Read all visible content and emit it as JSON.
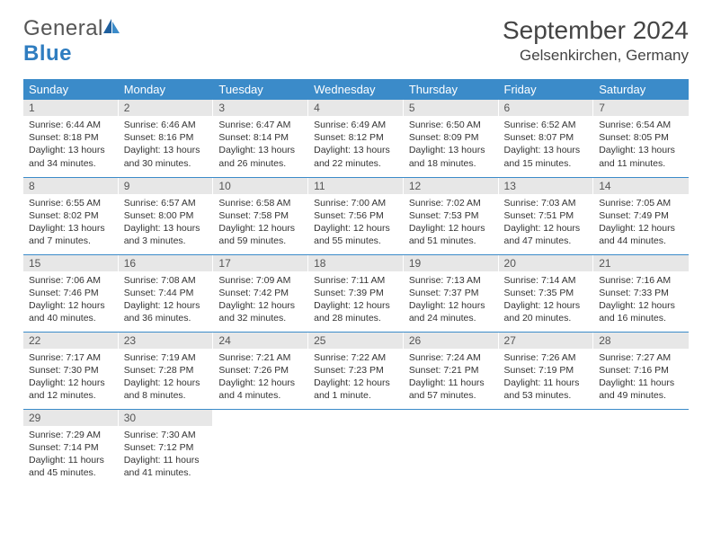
{
  "brand": {
    "name_gray": "General",
    "name_blue": "Blue"
  },
  "title": "September 2024",
  "location": "Gelsenkirchen, Germany",
  "colors": {
    "header_bg": "#3b8bc9",
    "header_text": "#ffffff",
    "daynum_bg": "#e7e7e7",
    "rule": "#3b8bc9",
    "text": "#333333",
    "brand_blue": "#2f7dc0"
  },
  "weekdays": [
    "Sunday",
    "Monday",
    "Tuesday",
    "Wednesday",
    "Thursday",
    "Friday",
    "Saturday"
  ],
  "days": [
    {
      "n": 1,
      "sunrise": "6:44 AM",
      "sunset": "8:18 PM",
      "daylight": "13 hours and 34 minutes."
    },
    {
      "n": 2,
      "sunrise": "6:46 AM",
      "sunset": "8:16 PM",
      "daylight": "13 hours and 30 minutes."
    },
    {
      "n": 3,
      "sunrise": "6:47 AM",
      "sunset": "8:14 PM",
      "daylight": "13 hours and 26 minutes."
    },
    {
      "n": 4,
      "sunrise": "6:49 AM",
      "sunset": "8:12 PM",
      "daylight": "13 hours and 22 minutes."
    },
    {
      "n": 5,
      "sunrise": "6:50 AM",
      "sunset": "8:09 PM",
      "daylight": "13 hours and 18 minutes."
    },
    {
      "n": 6,
      "sunrise": "6:52 AM",
      "sunset": "8:07 PM",
      "daylight": "13 hours and 15 minutes."
    },
    {
      "n": 7,
      "sunrise": "6:54 AM",
      "sunset": "8:05 PM",
      "daylight": "13 hours and 11 minutes."
    },
    {
      "n": 8,
      "sunrise": "6:55 AM",
      "sunset": "8:02 PM",
      "daylight": "13 hours and 7 minutes."
    },
    {
      "n": 9,
      "sunrise": "6:57 AM",
      "sunset": "8:00 PM",
      "daylight": "13 hours and 3 minutes."
    },
    {
      "n": 10,
      "sunrise": "6:58 AM",
      "sunset": "7:58 PM",
      "daylight": "12 hours and 59 minutes."
    },
    {
      "n": 11,
      "sunrise": "7:00 AM",
      "sunset": "7:56 PM",
      "daylight": "12 hours and 55 minutes."
    },
    {
      "n": 12,
      "sunrise": "7:02 AM",
      "sunset": "7:53 PM",
      "daylight": "12 hours and 51 minutes."
    },
    {
      "n": 13,
      "sunrise": "7:03 AM",
      "sunset": "7:51 PM",
      "daylight": "12 hours and 47 minutes."
    },
    {
      "n": 14,
      "sunrise": "7:05 AM",
      "sunset": "7:49 PM",
      "daylight": "12 hours and 44 minutes."
    },
    {
      "n": 15,
      "sunrise": "7:06 AM",
      "sunset": "7:46 PM",
      "daylight": "12 hours and 40 minutes."
    },
    {
      "n": 16,
      "sunrise": "7:08 AM",
      "sunset": "7:44 PM",
      "daylight": "12 hours and 36 minutes."
    },
    {
      "n": 17,
      "sunrise": "7:09 AM",
      "sunset": "7:42 PM",
      "daylight": "12 hours and 32 minutes."
    },
    {
      "n": 18,
      "sunrise": "7:11 AM",
      "sunset": "7:39 PM",
      "daylight": "12 hours and 28 minutes."
    },
    {
      "n": 19,
      "sunrise": "7:13 AM",
      "sunset": "7:37 PM",
      "daylight": "12 hours and 24 minutes."
    },
    {
      "n": 20,
      "sunrise": "7:14 AM",
      "sunset": "7:35 PM",
      "daylight": "12 hours and 20 minutes."
    },
    {
      "n": 21,
      "sunrise": "7:16 AM",
      "sunset": "7:33 PM",
      "daylight": "12 hours and 16 minutes."
    },
    {
      "n": 22,
      "sunrise": "7:17 AM",
      "sunset": "7:30 PM",
      "daylight": "12 hours and 12 minutes."
    },
    {
      "n": 23,
      "sunrise": "7:19 AM",
      "sunset": "7:28 PM",
      "daylight": "12 hours and 8 minutes."
    },
    {
      "n": 24,
      "sunrise": "7:21 AM",
      "sunset": "7:26 PM",
      "daylight": "12 hours and 4 minutes."
    },
    {
      "n": 25,
      "sunrise": "7:22 AM",
      "sunset": "7:23 PM",
      "daylight": "12 hours and 1 minute."
    },
    {
      "n": 26,
      "sunrise": "7:24 AM",
      "sunset": "7:21 PM",
      "daylight": "11 hours and 57 minutes."
    },
    {
      "n": 27,
      "sunrise": "7:26 AM",
      "sunset": "7:19 PM",
      "daylight": "11 hours and 53 minutes."
    },
    {
      "n": 28,
      "sunrise": "7:27 AM",
      "sunset": "7:16 PM",
      "daylight": "11 hours and 49 minutes."
    },
    {
      "n": 29,
      "sunrise": "7:29 AM",
      "sunset": "7:14 PM",
      "daylight": "11 hours and 45 minutes."
    },
    {
      "n": 30,
      "sunrise": "7:30 AM",
      "sunset": "7:12 PM",
      "daylight": "11 hours and 41 minutes."
    }
  ],
  "labels": {
    "sunrise": "Sunrise:",
    "sunset": "Sunset:",
    "daylight": "Daylight:"
  },
  "layout": {
    "first_weekday_offset": 0,
    "rows": 5,
    "cols": 7
  }
}
